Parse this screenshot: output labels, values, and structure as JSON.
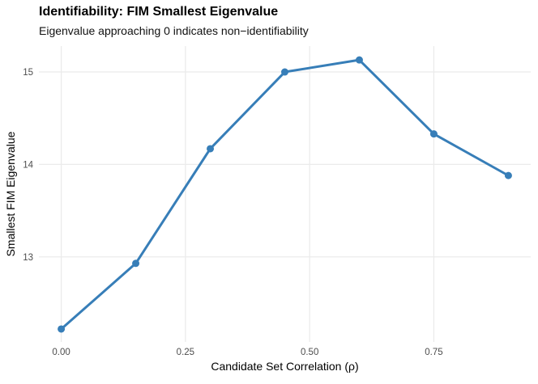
{
  "chart_data": {
    "type": "line",
    "title": "Identifiability: FIM Smallest Eigenvalue",
    "subtitle": "Eigenvalue approaching 0 indicates non−identifiability",
    "xlabel": "Candidate Set Correlation (ρ)",
    "ylabel": "Smallest FIM Eigenvalue",
    "x": [
      0.0,
      0.15,
      0.3,
      0.45,
      0.6,
      0.75,
      0.9
    ],
    "y": [
      12.22,
      12.93,
      14.17,
      15.0,
      15.13,
      14.33,
      13.88
    ],
    "x_ticks": {
      "values": [
        0.0,
        0.25,
        0.5,
        0.75
      ],
      "labels": [
        "0.00",
        "0.25",
        "0.50",
        "0.75"
      ]
    },
    "y_ticks": {
      "values": [
        13,
        14,
        15
      ],
      "labels": [
        "13",
        "14",
        "15"
      ]
    },
    "xlim": [
      -0.045,
      0.945
    ],
    "ylim": [
      12.08,
      15.28
    ],
    "grid": "major-only",
    "legend": "none",
    "colors": {
      "line": "#377EB8",
      "point": "#377EB8",
      "grid": "#EBEBEB",
      "tick_label": "#4D4D4D",
      "axis_title": "#000000",
      "background": "#FFFFFF"
    }
  }
}
